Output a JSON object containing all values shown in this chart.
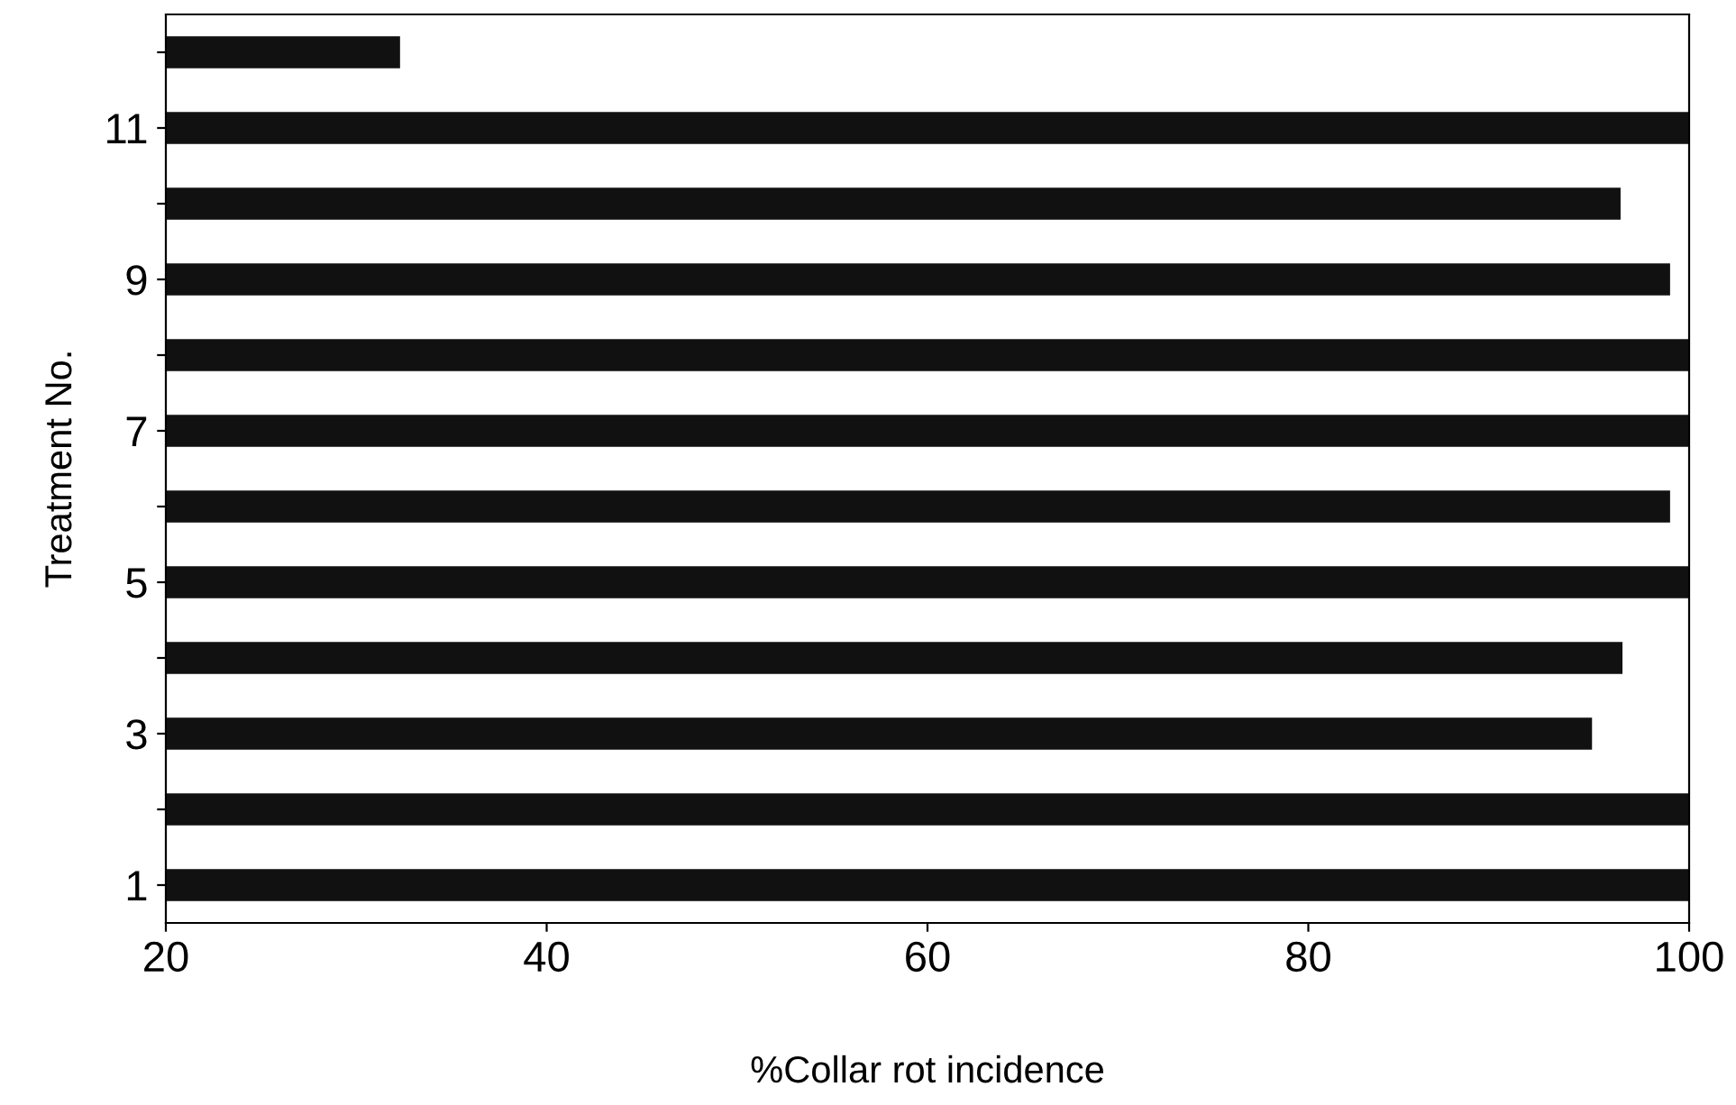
{
  "chart_data": {
    "type": "bar",
    "orientation": "horizontal",
    "xlabel": "%Collar rot incidence",
    "ylabel": "Treatment No.",
    "categories": [
      null,
      "11",
      null,
      "9",
      null,
      "7",
      null,
      "5",
      null,
      "3",
      null,
      "1"
    ],
    "values": [
      32.3,
      100,
      96.4,
      99,
      100,
      100,
      99,
      100,
      96.5,
      94.9,
      100,
      100
    ],
    "color": "#111111",
    "xlim": [
      20,
      100
    ],
    "xticks": [
      20,
      40,
      60,
      80,
      100
    ],
    "grid": false,
    "legend": false
  }
}
